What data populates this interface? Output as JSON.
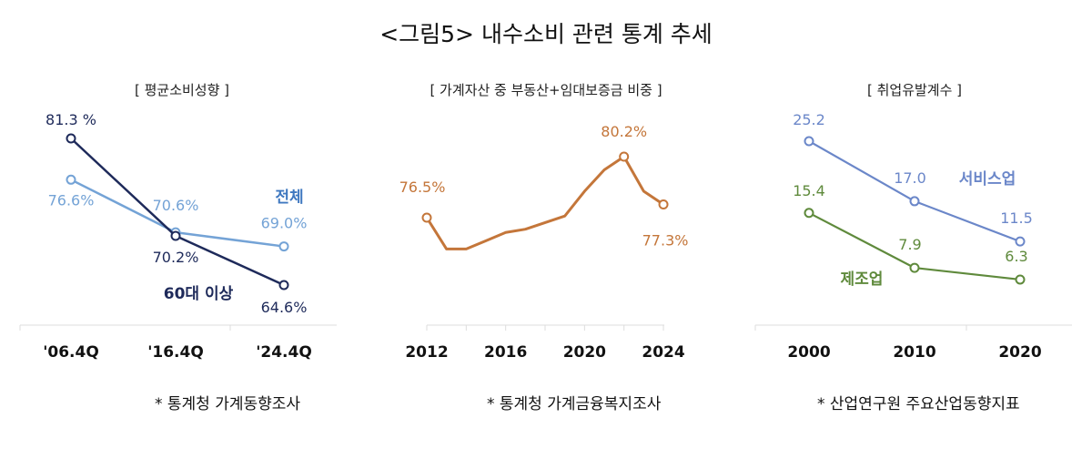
{
  "title": "<그림5> 내수소비 관련 통계 추세",
  "chart_data": [
    {
      "type": "line",
      "title": "[ 평균소비성향 ]",
      "categories": [
        "'06.4Q",
        "'16.4Q",
        "'24.4Q"
      ],
      "unit": "%",
      "series": [
        {
          "name": "전체",
          "values": [
            76.6,
            70.6,
            69.0
          ],
          "labels": [
            "76.6%",
            "70.6%",
            "69.0%"
          ],
          "color": "#74a3d6"
        },
        {
          "name": "60대 이상",
          "values": [
            81.3,
            70.2,
            64.6
          ],
          "labels": [
            "81.3 %",
            "70.2%",
            "64.6%"
          ],
          "color": "#1e2a5a"
        }
      ],
      "source": "* 통계청 가계동향조사"
    },
    {
      "type": "line",
      "title": "[ 가계자산 중 부동산+임대보증금 비중 ]",
      "x": [
        2012,
        2013,
        2014,
        2015,
        2016,
        2017,
        2018,
        2019,
        2020,
        2021,
        2022,
        2023,
        2024
      ],
      "xticks": [
        "2012",
        "2016",
        "2020",
        "2024"
      ],
      "unit": "%",
      "series": [
        {
          "values": [
            76.5,
            74.6,
            74.6,
            75.1,
            75.6,
            75.8,
            76.2,
            76.6,
            78.1,
            79.4,
            80.2,
            78.1,
            77.3
          ],
          "labels": {
            "2012": "76.5%",
            "2022": "80.2%",
            "2024": "77.3%"
          },
          "color": "#c4763a"
        }
      ],
      "source": "* 통계청 가계금융복지조사"
    },
    {
      "type": "line",
      "title": "[ 취업유발계수 ]",
      "categories": [
        "2000",
        "2010",
        "2020"
      ],
      "series": [
        {
          "name": "서비스업",
          "values": [
            25.2,
            17.0,
            11.5
          ],
          "labels": [
            "25.2",
            "17.0",
            "11.5"
          ],
          "color": "#6b87c9"
        },
        {
          "name": "제조업",
          "values": [
            15.4,
            7.9,
            6.3
          ],
          "labels": [
            "15.4",
            "7.9",
            "6.3"
          ],
          "color": "#5f8a3c"
        }
      ],
      "source": "* 산업연구원 주요산업동향지표"
    }
  ]
}
